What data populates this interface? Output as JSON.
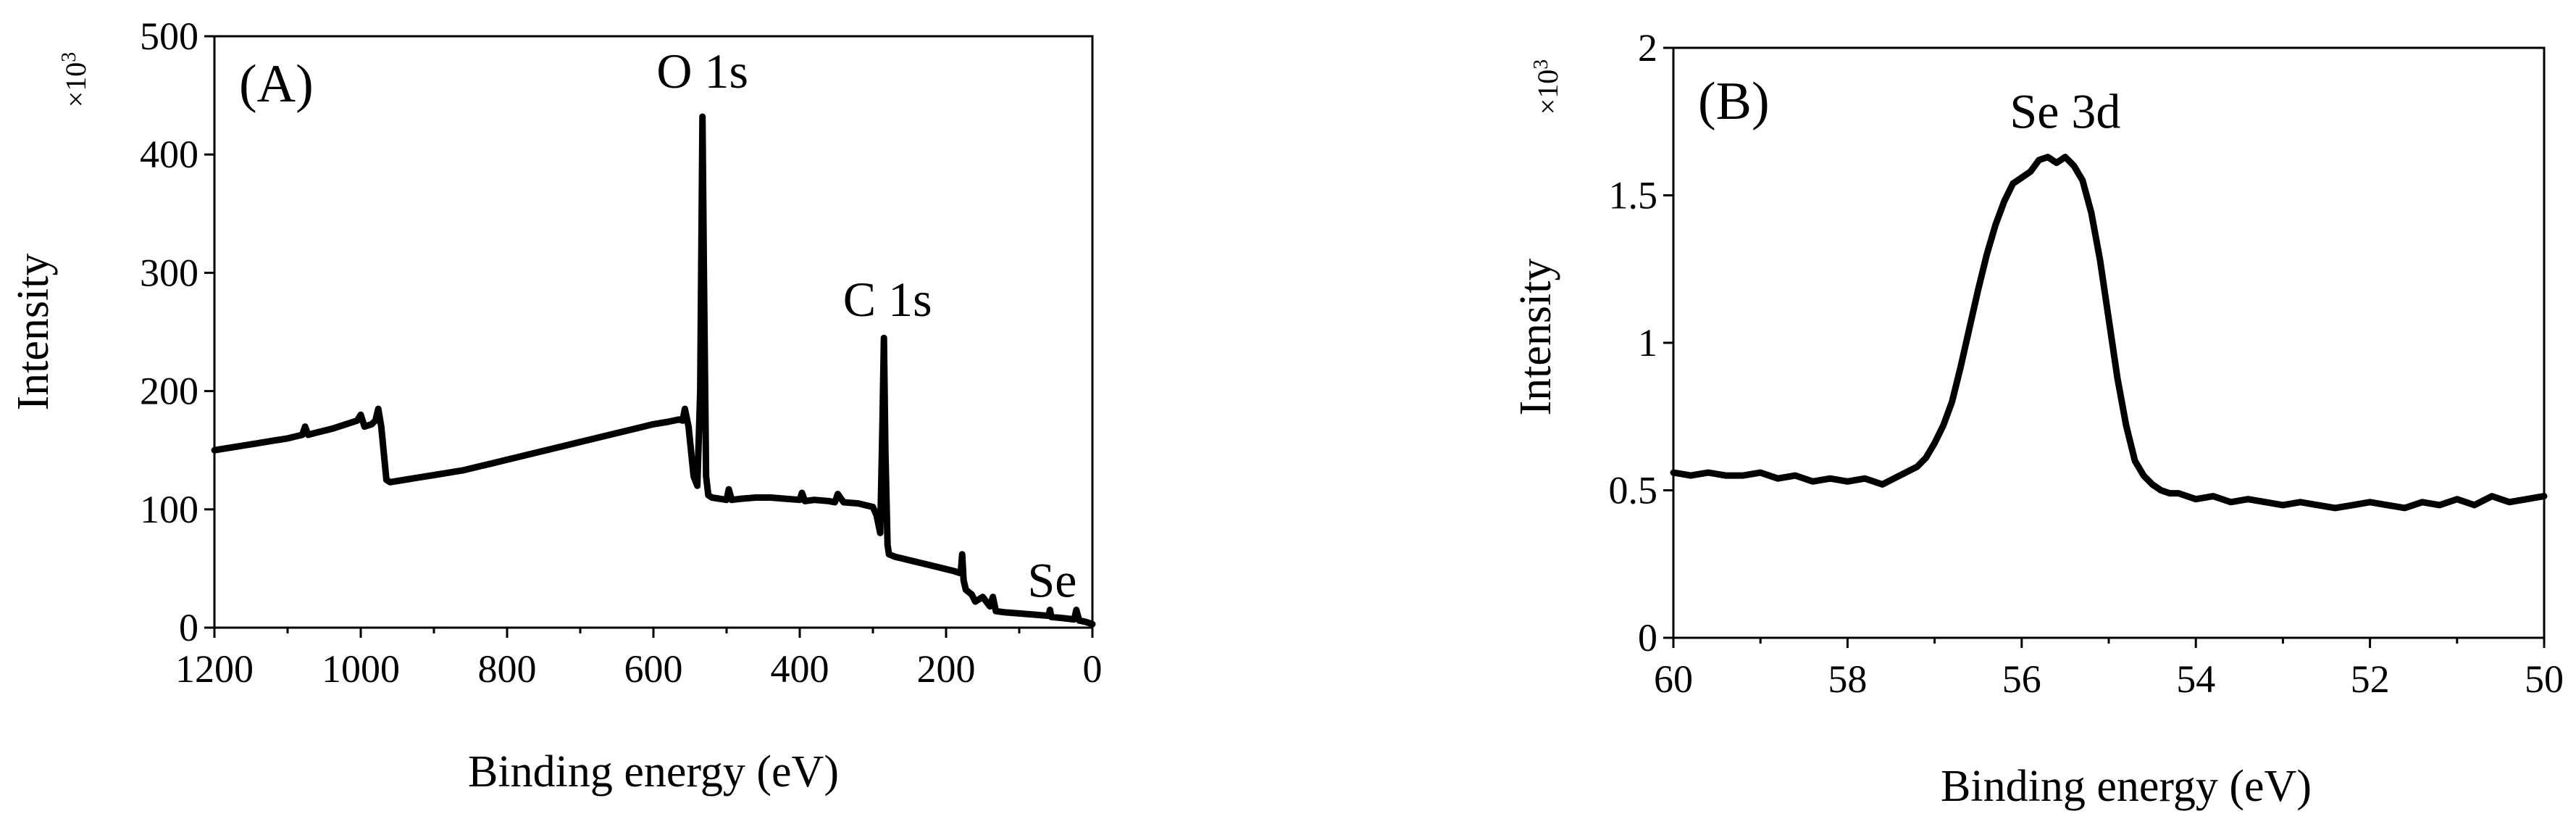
{
  "chart_data": [
    {
      "type": "line",
      "panel_label": "(A)",
      "xlabel": "Binding energy (eV)",
      "ylabel": "Intensity",
      "y_multiplier": {
        "prefix": "×10",
        "exponent": "3"
      },
      "xlim": [
        1200,
        0
      ],
      "x_reversed": true,
      "ylim": [
        0,
        500
      ],
      "xticks": [
        1200,
        1000,
        800,
        600,
        400,
        200,
        0
      ],
      "xtick_labels": [
        "1200",
        "1000",
        "800",
        "600",
        "400",
        "200",
        "0"
      ],
      "yticks": [
        0,
        100,
        200,
        300,
        400,
        500
      ],
      "ytick_labels": [
        "0",
        "100",
        "200",
        "300",
        "400",
        "500"
      ],
      "grid": false,
      "series": [
        {
          "color": "#000000",
          "x": [
            1200,
            1180,
            1160,
            1140,
            1120,
            1100,
            1080,
            1076,
            1072,
            1060,
            1040,
            1020,
            1005,
            1000,
            995,
            985,
            980,
            976,
            972,
            965,
            960,
            940,
            920,
            900,
            880,
            860,
            840,
            820,
            800,
            780,
            760,
            740,
            720,
            700,
            680,
            660,
            640,
            620,
            600,
            580,
            565,
            560,
            557,
            552,
            545,
            540,
            536,
            533,
            531,
            528,
            525,
            520,
            500,
            497,
            493,
            480,
            460,
            440,
            420,
            400,
            397,
            393,
            380,
            360,
            352,
            348,
            340,
            320,
            300,
            295,
            290,
            287,
            285,
            283,
            280,
            278,
            270,
            250,
            230,
            210,
            190,
            180,
            178,
            176,
            173,
            165,
            160,
            150,
            140,
            136,
            132,
            120,
            100,
            80,
            60,
            58,
            56,
            40,
            25,
            22,
            18,
            10,
            0
          ],
          "y": [
            150,
            152,
            154,
            156,
            158,
            160,
            163,
            170,
            163,
            165,
            168,
            172,
            175,
            180,
            170,
            172,
            175,
            185,
            170,
            125,
            123,
            125,
            127,
            129,
            131,
            133,
            136,
            139,
            142,
            145,
            148,
            151,
            154,
            157,
            160,
            163,
            166,
            169,
            172,
            174,
            176,
            175,
            185,
            170,
            128,
            120,
            200,
            432,
            300,
            128,
            112,
            110,
            108,
            117,
            108,
            109,
            110,
            110,
            109,
            108,
            114,
            107,
            108,
            107,
            106,
            113,
            106,
            105,
            102,
            95,
            80,
            170,
            245,
            150,
            70,
            62,
            60,
            57,
            54,
            51,
            48,
            46,
            62,
            40,
            32,
            28,
            22,
            26,
            18,
            26,
            14,
            13,
            12,
            11,
            10,
            15,
            9,
            8,
            7,
            15,
            6,
            5,
            3
          ]
        }
      ],
      "annotations": [
        {
          "text": "O 1s",
          "x": 533,
          "y": 432
        },
        {
          "text": "C 1s",
          "x": 285,
          "y": 245
        },
        {
          "text": "Se",
          "x": 55,
          "y": 15
        }
      ]
    },
    {
      "type": "line",
      "panel_label": "(B)",
      "xlabel": "Binding energy (eV)",
      "ylabel": "Intensity",
      "y_multiplier": {
        "prefix": "×10",
        "exponent": "3"
      },
      "xlim": [
        60,
        50
      ],
      "x_reversed": true,
      "ylim": [
        0,
        2
      ],
      "xticks": [
        60,
        58,
        56,
        54,
        52,
        50
      ],
      "xtick_labels": [
        "60",
        "58",
        "56",
        "54",
        "52",
        "50"
      ],
      "yticks": [
        0,
        0.5,
        1,
        1.5,
        2
      ],
      "ytick_labels": [
        "0",
        "0.5",
        "1",
        "1.5",
        "2"
      ],
      "grid": false,
      "series": [
        {
          "color": "#000000",
          "x": [
            60,
            59.8,
            59.6,
            59.4,
            59.2,
            59,
            58.8,
            58.6,
            58.4,
            58.2,
            58,
            57.8,
            57.6,
            57.4,
            57.2,
            57.1,
            57,
            56.9,
            56.8,
            56.7,
            56.6,
            56.5,
            56.4,
            56.3,
            56.2,
            56.1,
            56,
            55.9,
            55.8,
            55.7,
            55.6,
            55.5,
            55.4,
            55.3,
            55.2,
            55.1,
            55,
            54.9,
            54.8,
            54.7,
            54.6,
            54.5,
            54.4,
            54.3,
            54.2,
            54,
            53.8,
            53.6,
            53.4,
            53.2,
            53,
            52.8,
            52.6,
            52.4,
            52.2,
            52,
            51.8,
            51.6,
            51.4,
            51.2,
            51,
            50.8,
            50.6,
            50.4,
            50.2,
            50
          ],
          "y": [
            0.56,
            0.55,
            0.56,
            0.55,
            0.55,
            0.56,
            0.54,
            0.55,
            0.53,
            0.54,
            0.53,
            0.54,
            0.52,
            0.55,
            0.58,
            0.61,
            0.66,
            0.72,
            0.8,
            0.92,
            1.05,
            1.18,
            1.3,
            1.4,
            1.48,
            1.54,
            1.56,
            1.58,
            1.62,
            1.63,
            1.61,
            1.63,
            1.6,
            1.55,
            1.44,
            1.28,
            1.08,
            0.88,
            0.72,
            0.6,
            0.55,
            0.52,
            0.5,
            0.49,
            0.49,
            0.47,
            0.48,
            0.46,
            0.47,
            0.46,
            0.45,
            0.46,
            0.45,
            0.44,
            0.45,
            0.46,
            0.45,
            0.44,
            0.46,
            0.45,
            0.47,
            0.45,
            0.48,
            0.46,
            0.47,
            0.48
          ]
        }
      ],
      "annotations": [
        {
          "text": "Se 3d",
          "x": 55.5,
          "y": 1.63
        }
      ]
    }
  ]
}
